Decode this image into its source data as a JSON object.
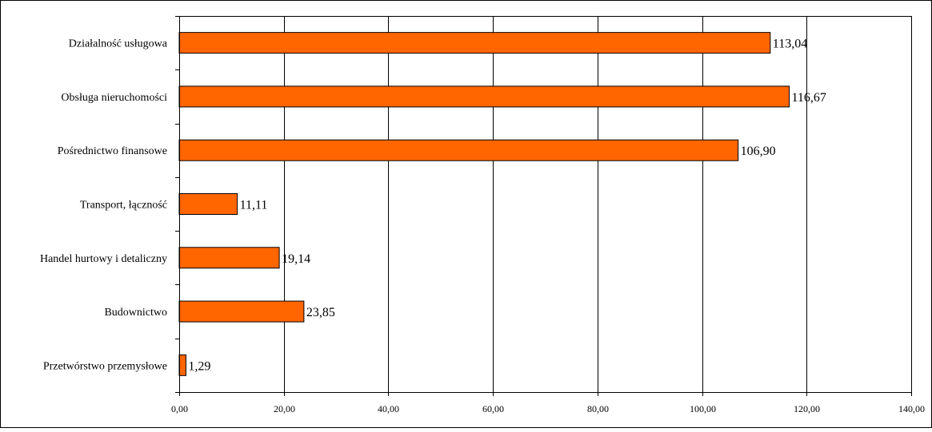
{
  "chart_data": {
    "type": "bar",
    "orientation": "horizontal",
    "title": "",
    "xlabel": "",
    "ylabel": "",
    "categories": [
      "Działalność usługowa",
      "Obsługa nieruchomości",
      "Pośrednictwo finansowe",
      "Transport, łączność",
      "Handel hurtowy i detaliczny",
      "Budownictwo",
      "Przetwórstwo przemysłowe"
    ],
    "values": [
      113.04,
      116.67,
      106.9,
      11.11,
      19.14,
      23.85,
      1.29
    ],
    "value_labels": [
      "113,04",
      "116,67",
      "106,90",
      "11,11",
      "19,14",
      "23,85",
      "1,29"
    ],
    "xlim": [
      0,
      140
    ],
    "xticks": [
      0,
      20,
      40,
      60,
      80,
      100,
      120,
      140
    ],
    "xtick_labels": [
      "0,00",
      "20,00",
      "40,00",
      "60,00",
      "80,00",
      "100,00",
      "120,00",
      "140,00"
    ],
    "grid": "vertical",
    "legend": "none",
    "colors": {
      "bar_fill": "#ff6600",
      "bar_stroke": "#000000",
      "grid": "#000000",
      "axis": "#000000",
      "frame": "#000000"
    }
  }
}
